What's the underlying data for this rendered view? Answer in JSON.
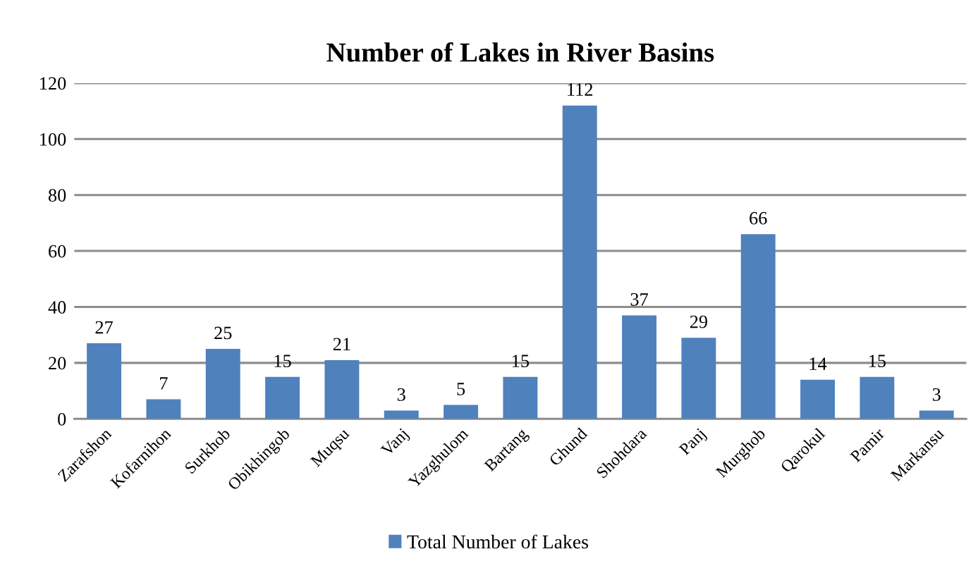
{
  "chart_data": {
    "type": "bar",
    "title": "Number of Lakes in River Basins",
    "categories": [
      "Zarafshon",
      "Kofarnihon",
      "Surkhob",
      "Obikhingob",
      "Muqsu",
      "Vanj",
      "Yazghulom",
      "Bartang",
      "Ghund",
      "Shohdara",
      "Panj",
      "Murghob",
      "Qarokul",
      "Pamir",
      "Markansu"
    ],
    "series": [
      {
        "name": "Total Number of Lakes",
        "color": "#4f81bd",
        "values": [
          27,
          7,
          25,
          15,
          21,
          3,
          5,
          15,
          112,
          37,
          29,
          66,
          14,
          15,
          3
        ]
      }
    ],
    "ylim": [
      0,
      120
    ],
    "yticks": [
      0,
      20,
      40,
      60,
      80,
      100,
      120
    ],
    "grid": "y",
    "legend": "bottom",
    "data_labels": true
  }
}
